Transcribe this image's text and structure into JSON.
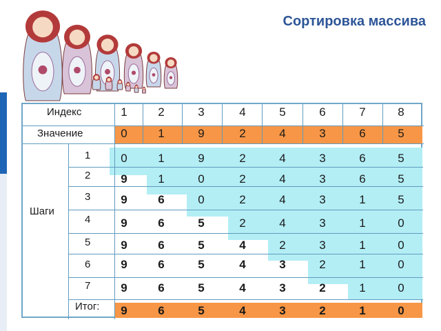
{
  "title": "Сортировка массива",
  "table": {
    "index_label": "Индекс",
    "value_label": "Значение",
    "steps_label": "Шаги",
    "result_label": "Итог:",
    "indices": [
      "1",
      "2",
      "3",
      "4",
      "5",
      "6",
      "7",
      "8"
    ],
    "values": [
      "0",
      "1",
      "9",
      "2",
      "4",
      "3",
      "6",
      "5"
    ],
    "steps": [
      {
        "label": "1",
        "cells": [
          "0",
          "1",
          "9",
          "2",
          "4",
          "3",
          "6",
          "5"
        ],
        "bold_count": 0
      },
      {
        "label": "2",
        "cells": [
          "9",
          "1",
          "0",
          "2",
          "4",
          "3",
          "6",
          "5"
        ],
        "bold_count": 1
      },
      {
        "label": "3",
        "cells": [
          "9",
          "6",
          "0",
          "2",
          "4",
          "3",
          "1",
          "5"
        ],
        "bold_count": 2
      },
      {
        "label": "4",
        "cells": [
          "9",
          "6",
          "5",
          "2",
          "4",
          "3",
          "1",
          "0"
        ],
        "bold_count": 3
      },
      {
        "label": "5",
        "cells": [
          "9",
          "6",
          "5",
          "4",
          "2",
          "3",
          "1",
          "0"
        ],
        "bold_count": 4
      },
      {
        "label": "6",
        "cells": [
          "9",
          "6",
          "5",
          "4",
          "3",
          "2",
          "1",
          "0"
        ],
        "bold_count": 5
      },
      {
        "label": "7",
        "cells": [
          "9",
          "6",
          "5",
          "4",
          "3",
          "2",
          "1",
          "0"
        ],
        "bold_count": 6
      }
    ],
    "result": [
      "9",
      "6",
      "5",
      "4",
      "3",
      "2",
      "1",
      "0"
    ]
  },
  "colors": {
    "title": "#2d5597",
    "value_row": "#f79646",
    "highlight": "#b3eef5",
    "sidebar": "#1f65b5"
  },
  "illustration": {
    "icon": "matryoshka-dolls-icon"
  }
}
